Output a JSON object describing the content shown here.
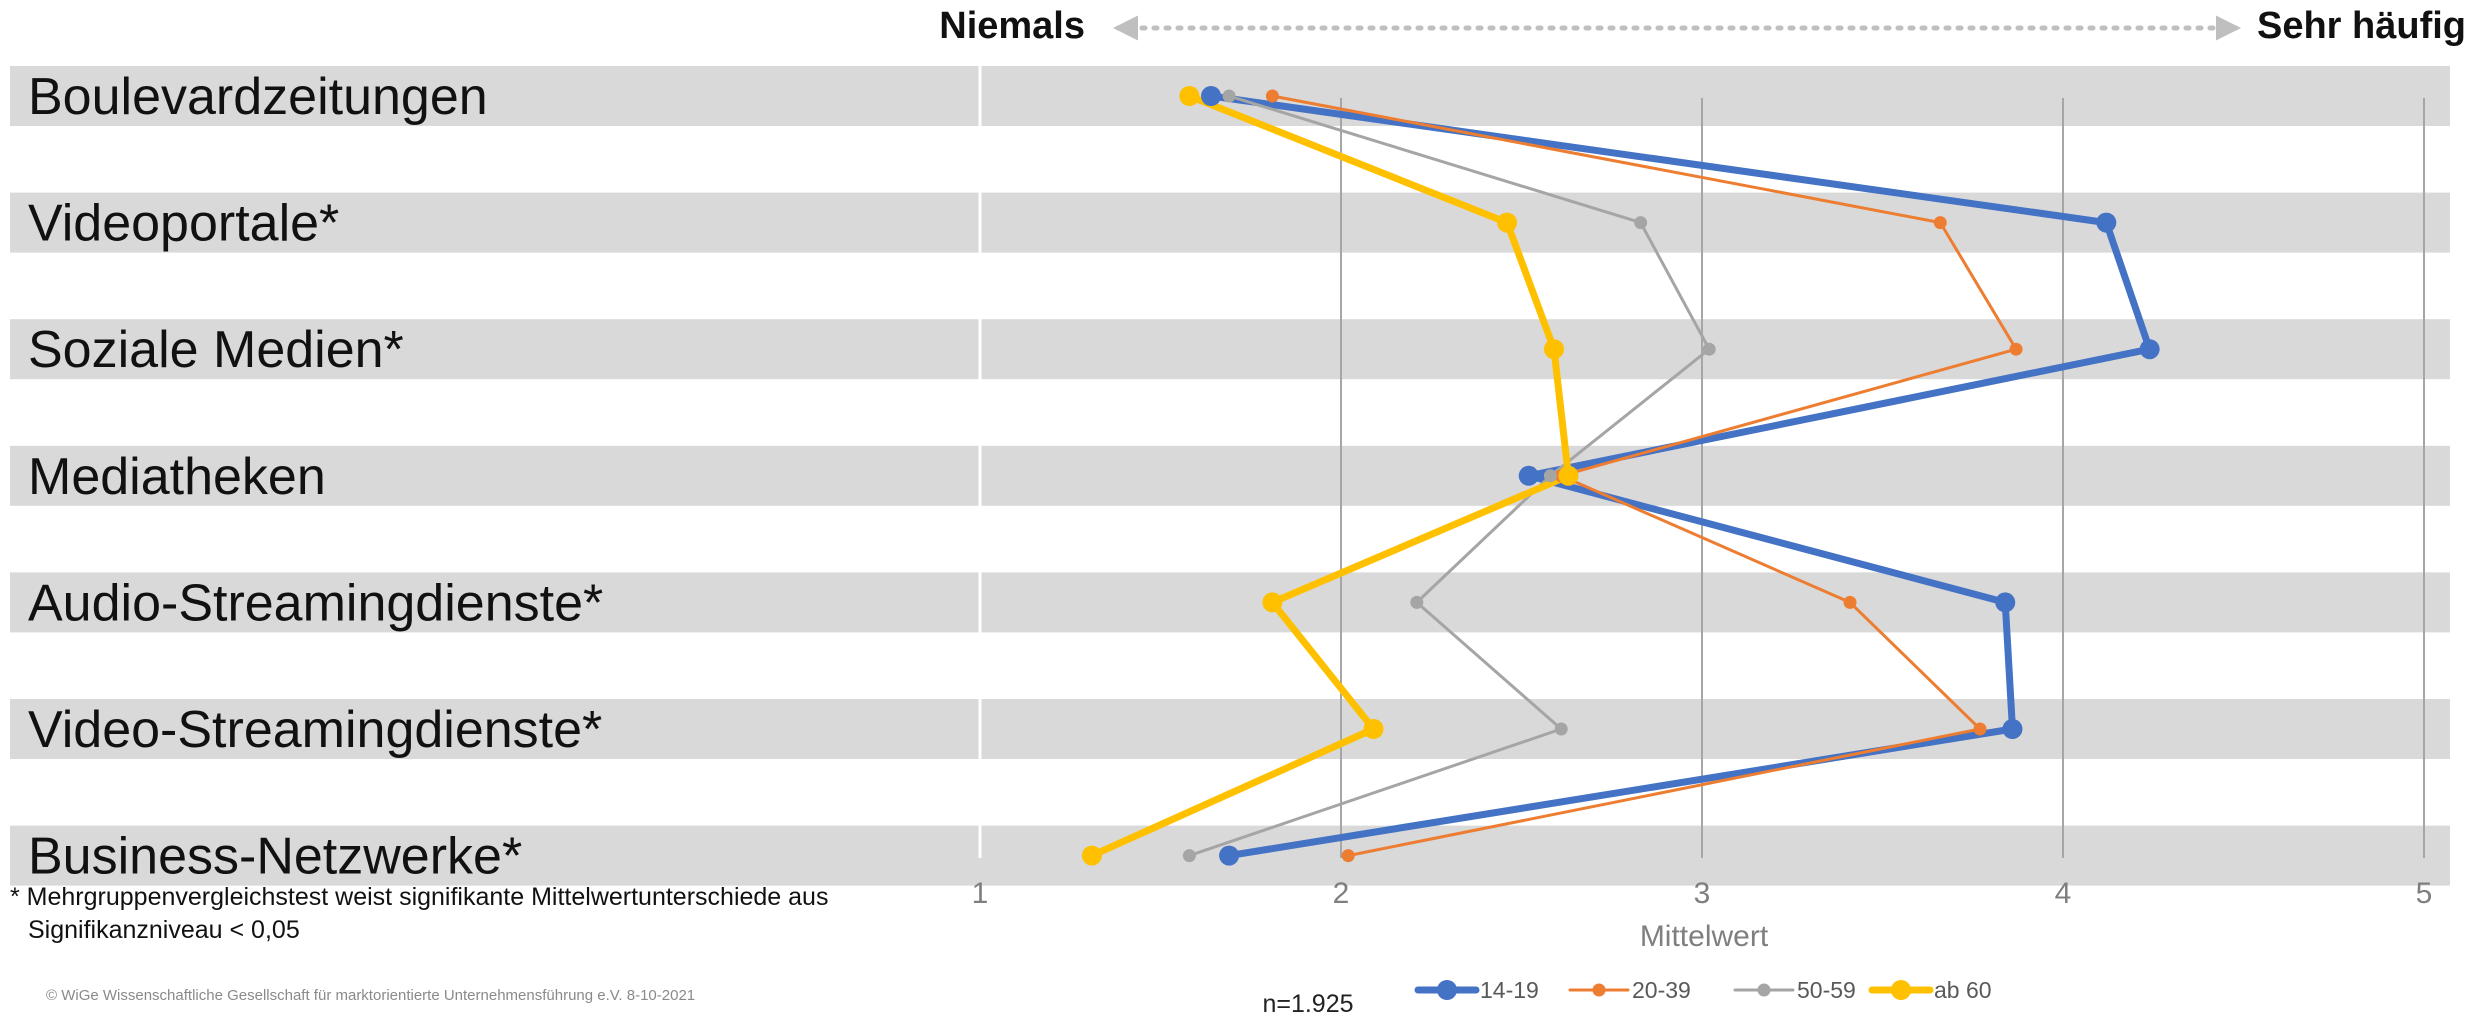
{
  "header": {
    "left": "Niemals",
    "right": "Sehr häufig",
    "arrow_color": "#bfbfbf"
  },
  "note": {
    "line1": "* Mehrgruppenvergleichstest weist signifikante Mittelwertunterschiede aus",
    "line2": "Signifikanzniveau < 0,05"
  },
  "copyright": "© WiGe Wissenschaftliche Gesellschaft für marktorientierte Unternehmensführung e.V. 8-10-2021",
  "sample_size": "n=1.925",
  "colors": {
    "band": "#d9d9d9",
    "grid": "#a6a6a6"
  },
  "chart_data": {
    "type": "line",
    "orientation": "horizontal",
    "categories": [
      "Boulevardzeitungen",
      "Videoportale*",
      "Soziale Medien*",
      "Mediatheken",
      "Audio-Streamingdienste*",
      "Video-Streamingdienste*",
      "Business-Netzwerke*"
    ],
    "xlabel": "Mittelwert",
    "xlim": [
      1,
      5
    ],
    "xticks": [
      1,
      2,
      3,
      4,
      5
    ],
    "legend_position": "bottom",
    "series": [
      {
        "name": "14-19",
        "color": "#4472c4",
        "width": "thick",
        "values": [
          1.64,
          4.12,
          4.24,
          2.52,
          3.84,
          3.86,
          1.69
        ]
      },
      {
        "name": "20-39",
        "color": "#ed7d31",
        "width": "thin",
        "values": [
          1.81,
          3.66,
          3.87,
          2.61,
          3.41,
          3.77,
          2.02
        ]
      },
      {
        "name": "50-59",
        "color": "#a5a5a5",
        "width": "thin",
        "values": [
          1.69,
          2.83,
          3.02,
          2.58,
          2.21,
          2.61,
          1.58
        ]
      },
      {
        "name": "ab 60",
        "color": "#ffc000",
        "width": "thick",
        "values": [
          1.58,
          2.46,
          2.59,
          2.63,
          1.81,
          2.09,
          1.31
        ]
      }
    ]
  }
}
